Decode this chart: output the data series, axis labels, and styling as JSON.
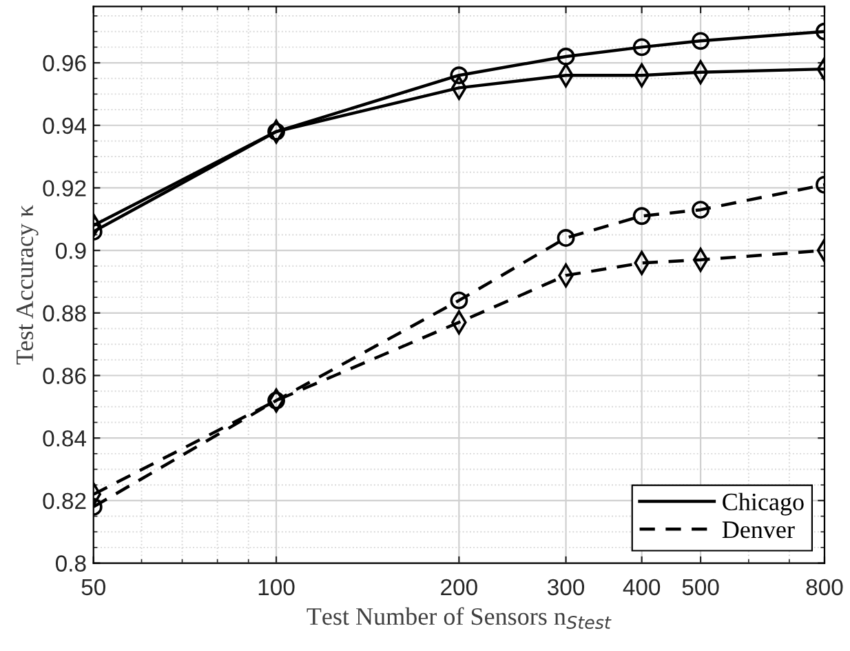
{
  "chart_data": {
    "type": "line",
    "xlabel": "Test Number of Sensors n$_{Stest}$",
    "ylabel": "Test Accuracy κ",
    "x": [
      50,
      100,
      200,
      300,
      400,
      500,
      800
    ],
    "series": [
      {
        "name": "Chicago",
        "color": "#000000",
        "line_style": "solid",
        "marker": "circle",
        "values": [
          0.906,
          0.938,
          0.956,
          0.962,
          0.965,
          0.967,
          0.97
        ]
      },
      {
        "color": "#000000",
        "line_style": "solid",
        "marker": "diamond",
        "values": [
          0.908,
          0.938,
          0.952,
          0.956,
          0.956,
          0.957,
          0.958
        ]
      },
      {
        "name": "Denver",
        "color": "#000000",
        "line_style": "dashed",
        "marker": "circle",
        "values": [
          0.818,
          0.852,
          0.884,
          0.904,
          0.911,
          0.913,
          0.921
        ]
      },
      {
        "color": "#000000",
        "line_style": "dashed",
        "marker": "diamond",
        "values": [
          0.822,
          0.852,
          0.877,
          0.892,
          0.896,
          0.897,
          0.9
        ]
      }
    ],
    "log": "x",
    "xlim": [
      50,
      800
    ],
    "xticks": [
      50,
      100,
      200,
      300,
      400,
      500,
      800
    ],
    "ylim": [
      0.8,
      0.978
    ],
    "yticks": [
      0.8,
      0.82,
      0.84,
      0.86,
      0.88,
      0.9,
      0.92,
      0.94,
      0.96
    ],
    "grid": true,
    "legend": "bottom right"
  }
}
